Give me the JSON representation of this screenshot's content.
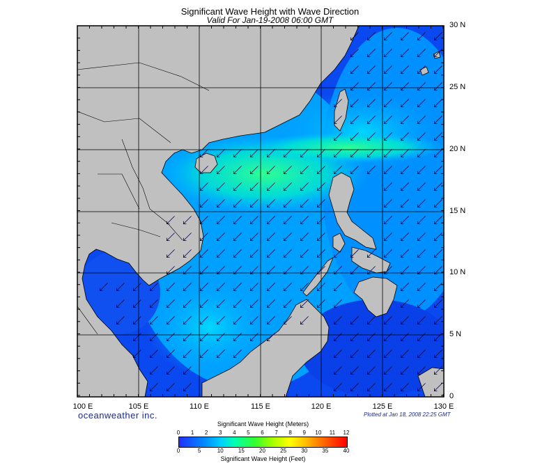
{
  "title": "Significant Wave Height with Wave Direction",
  "subtitle": "Valid For Jan-19-2008 06:00 GMT",
  "lon_labels": [
    "100 E",
    "105 E",
    "110 E",
    "115 E",
    "120 E",
    "125 E",
    "130 E"
  ],
  "lat_labels": [
    "30 N",
    "25 N",
    "20 N",
    "15 N",
    "10 N",
    "5 N",
    "0"
  ],
  "brand": "oceanweather inc.",
  "plotted": "Plotted at Jan 18, 2008 22:25 GMT",
  "colorbar": {
    "meters_title": "Significant Wave Height (Meters)",
    "meters_ticks": [
      "0",
      "1",
      "2",
      "3",
      "4",
      "5",
      "6",
      "7",
      "8",
      "9",
      "10",
      "11",
      "12"
    ],
    "feet_title": "Significant Wave Height (Feet)",
    "feet_ticks": [
      "0",
      "5",
      "10",
      "15",
      "20",
      "25",
      "30",
      "35",
      "40"
    ]
  },
  "colors": {
    "land": "#c0c0c0",
    "sea_low": "#1030e0",
    "sea_mid": "#00a8ff",
    "sea_high": "#20ff90",
    "arrows": "#000040"
  },
  "wave_direction": "from NE toward SW"
}
